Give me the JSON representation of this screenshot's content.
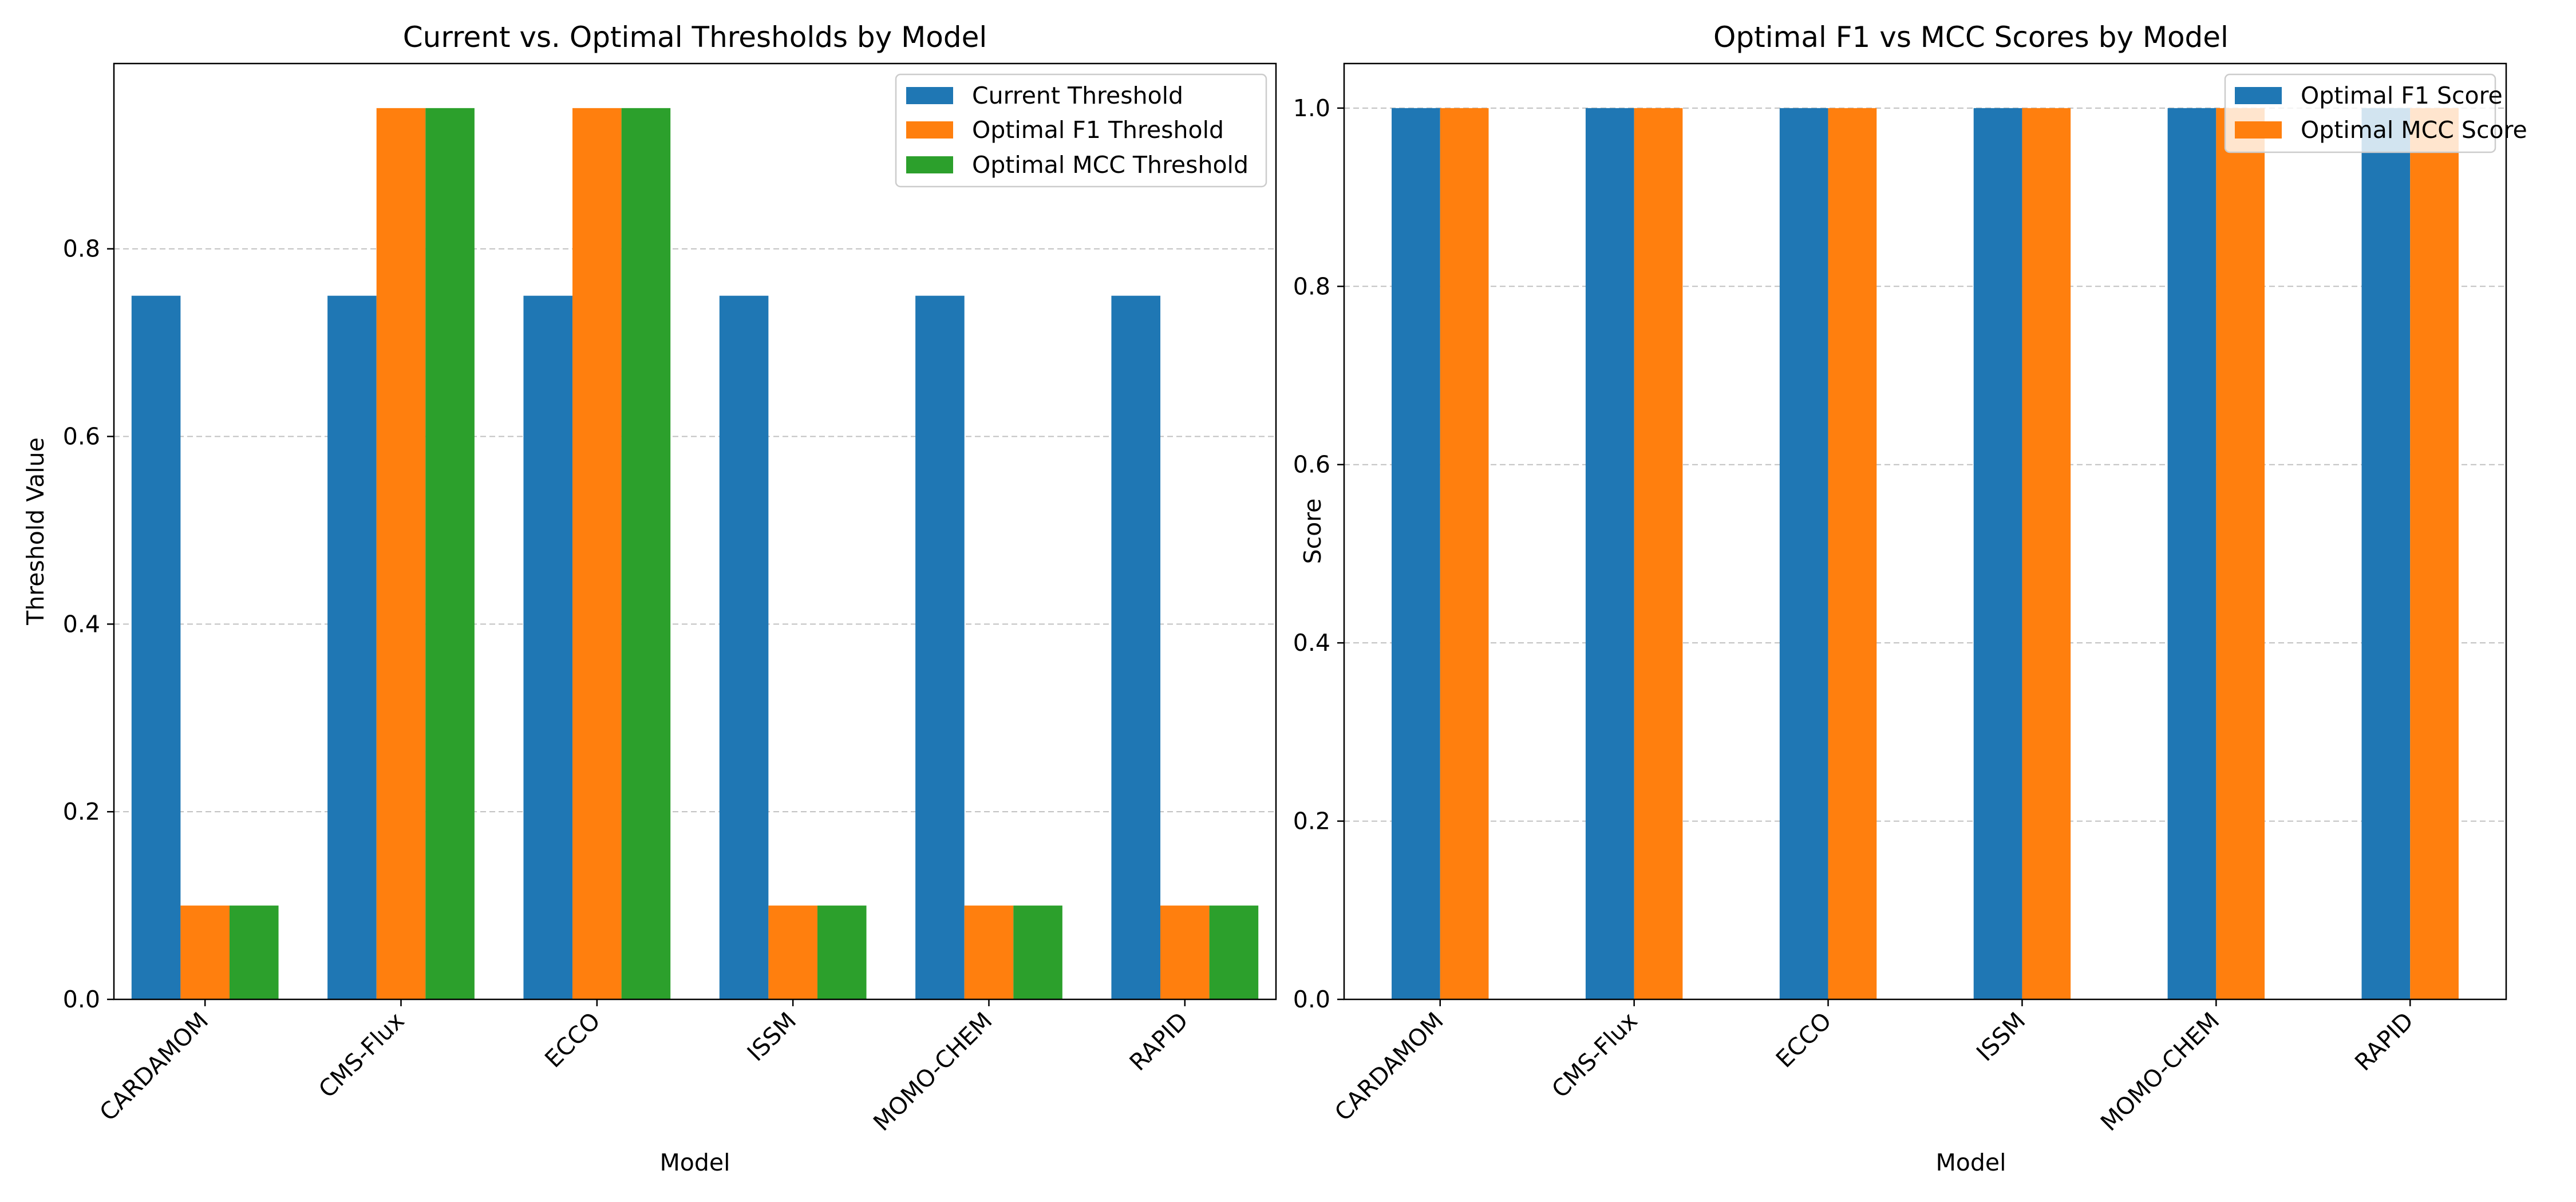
{
  "chart_data": [
    {
      "type": "bar",
      "title": "Current vs. Optimal Thresholds by Model",
      "xlabel": "Model",
      "ylabel": "Threshold Value",
      "categories": [
        "CARDAMOM",
        "CMS-Flux",
        "ECCO",
        "ISSM",
        "MOMO-CHEM",
        "RAPID"
      ],
      "series": [
        {
          "name": "Current Threshold",
          "color": "#1f77b4",
          "values": [
            0.75,
            0.75,
            0.75,
            0.75,
            0.75,
            0.75
          ]
        },
        {
          "name": "Optimal F1 Threshold",
          "color": "#ff7f0e",
          "values": [
            0.1,
            0.95,
            0.95,
            0.1,
            0.1,
            0.1
          ]
        },
        {
          "name": "Optimal MCC Threshold",
          "color": "#2ca02c",
          "values": [
            0.1,
            0.95,
            0.95,
            0.1,
            0.1,
            0.1
          ]
        }
      ],
      "ylim": [
        0,
        0.9975
      ],
      "yticks": [
        0.0,
        0.2,
        0.4,
        0.6,
        0.8
      ],
      "ytick_labels": [
        "0.0",
        "0.2",
        "0.4",
        "0.6",
        "0.8"
      ],
      "grid": "y-dashed",
      "legend": "top-right"
    },
    {
      "type": "bar",
      "title": "Optimal F1 vs MCC Scores by Model",
      "xlabel": "Model",
      "ylabel": "Score",
      "categories": [
        "CARDAMOM",
        "CMS-Flux",
        "ECCO",
        "ISSM",
        "MOMO-CHEM",
        "RAPID"
      ],
      "series": [
        {
          "name": "Optimal F1 Score",
          "color": "#1f77b4",
          "values": [
            1.0,
            1.0,
            1.0,
            1.0,
            1.0,
            1.0
          ]
        },
        {
          "name": "Optimal MCC Score",
          "color": "#ff7f0e",
          "values": [
            1.0,
            1.0,
            1.0,
            1.0,
            1.0,
            1.0
          ]
        }
      ],
      "ylim": [
        0,
        1.05
      ],
      "yticks": [
        0.0,
        0.2,
        0.4,
        0.6,
        0.8,
        1.0
      ],
      "ytick_labels": [
        "0.0",
        "0.2",
        "0.4",
        "0.6",
        "0.8",
        "1.0"
      ],
      "grid": "y-dashed",
      "legend": "top-right"
    }
  ]
}
